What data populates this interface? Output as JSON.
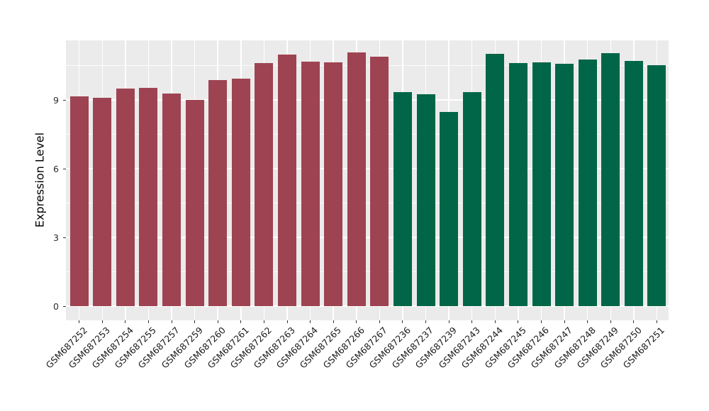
{
  "chart_data": {
    "type": "bar",
    "title": "",
    "xlabel": "",
    "ylabel": "Expression Level",
    "legend": "none",
    "grid": true,
    "panel_background": "#EBEBEB",
    "gridline_color": "#FFFFFF",
    "axis_tick_color": "#333333",
    "axis_text_color": "#1A1A1A",
    "y_ticks": [
      0,
      3,
      6,
      9
    ],
    "y_minor_ticks": [
      1.5,
      4.5,
      7.5,
      10.5
    ],
    "ylim": [
      -0.62,
      11.6
    ],
    "categories": [
      "GSM687252",
      "GSM687253",
      "GSM687254",
      "GSM687255",
      "GSM687257",
      "GSM687259",
      "GSM687260",
      "GSM687261",
      "GSM687262",
      "GSM687263",
      "GSM687264",
      "GSM687265",
      "GSM687266",
      "GSM687267",
      "GSM687236",
      "GSM687237",
      "GSM687239",
      "GSM687243",
      "GSM687244",
      "GSM687245",
      "GSM687246",
      "GSM687247",
      "GSM687248",
      "GSM687249",
      "GSM687250",
      "GSM687251"
    ],
    "values": [
      9.17,
      9.1,
      9.51,
      9.52,
      9.27,
      9.01,
      9.88,
      9.92,
      10.61,
      10.99,
      10.66,
      10.63,
      11.06,
      10.88,
      9.33,
      9.26,
      8.46,
      9.33,
      11.0,
      10.62,
      10.64,
      10.59,
      10.76,
      11.04,
      10.69,
      10.53
    ],
    "groups": [
      "group1",
      "group1",
      "group1",
      "group1",
      "group1",
      "group1",
      "group1",
      "group1",
      "group1",
      "group1",
      "group1",
      "group1",
      "group1",
      "group1",
      "group2",
      "group2",
      "group2",
      "group2",
      "group2",
      "group2",
      "group2",
      "group2",
      "group2",
      "group2",
      "group2",
      "group2"
    ],
    "group_colors": {
      "group1": "#9E4352",
      "group2": "#016648"
    }
  }
}
